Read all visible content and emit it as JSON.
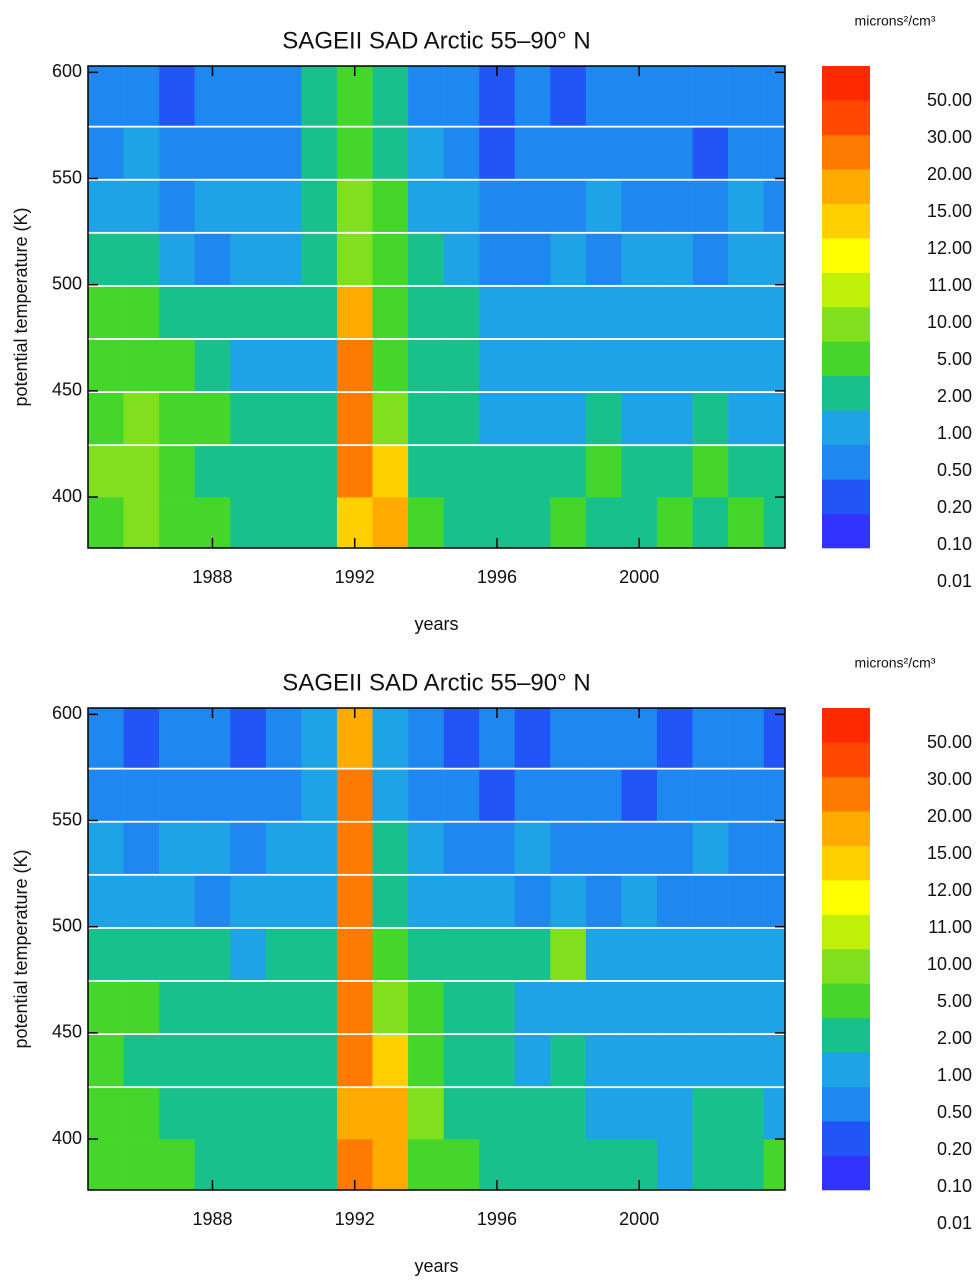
{
  "chart_data": [
    {
      "type": "heatmap",
      "title": "SAGEII SAD Arctic 55–90° N",
      "xlabel": "years",
      "ylabel": "potential temperature (K)",
      "colorbar_label": "microns²/cm³",
      "x": [
        1985,
        1986,
        1987,
        1988,
        1989,
        1990,
        1991,
        1992,
        1993,
        1994,
        1995,
        1996,
        1997,
        1998,
        1999,
        2000,
        2001,
        2002,
        2003,
        2004
      ],
      "y": [
        388,
        412,
        437,
        462,
        487,
        512,
        537,
        562,
        587
      ],
      "z": [
        [
          3,
          7,
          3,
          3,
          1.5,
          1.5,
          1.5,
          13,
          17,
          3,
          1.5,
          1.5,
          1.5,
          3,
          1.5,
          1.5,
          3,
          1.5,
          3,
          1.5
        ],
        [
          7,
          7,
          3,
          1.5,
          1.5,
          1.5,
          1.5,
          25,
          13,
          1.5,
          1.5,
          1.5,
          1.5,
          1.5,
          3,
          1.5,
          1.5,
          3,
          1.5,
          1.5
        ],
        [
          3,
          7,
          3,
          3,
          1.5,
          1.5,
          1.5,
          25,
          7,
          1.5,
          1.5,
          0.7,
          0.7,
          0.7,
          1.5,
          0.7,
          0.7,
          1.5,
          0.7,
          0.7
        ],
        [
          3,
          3,
          3,
          1.5,
          0.7,
          0.7,
          0.7,
          25,
          3,
          1.5,
          1.5,
          0.7,
          0.7,
          0.7,
          0.7,
          0.7,
          0.7,
          0.7,
          0.7,
          0.7
        ],
        [
          3,
          3,
          1.5,
          1.5,
          1.5,
          1.5,
          1.5,
          17,
          3,
          1.5,
          1.5,
          0.7,
          0.7,
          0.7,
          0.7,
          0.7,
          0.7,
          0.7,
          0.7,
          0.7
        ],
        [
          1.5,
          1.5,
          0.7,
          0.3,
          0.7,
          0.7,
          1.5,
          7,
          3,
          1.5,
          0.7,
          0.3,
          0.3,
          0.7,
          0.3,
          0.7,
          0.7,
          0.3,
          0.7,
          0.7
        ],
        [
          0.7,
          0.7,
          0.3,
          0.7,
          0.7,
          0.7,
          1.5,
          7,
          3,
          0.7,
          0.7,
          0.3,
          0.3,
          0.3,
          0.7,
          0.3,
          0.3,
          0.3,
          0.7,
          0.3
        ],
        [
          0.3,
          0.7,
          0.3,
          0.3,
          0.3,
          0.3,
          1.5,
          3,
          1.5,
          0.7,
          0.3,
          0.15,
          0.3,
          0.3,
          0.3,
          0.3,
          0.3,
          0.15,
          0.3,
          0.3
        ],
        [
          0.3,
          0.3,
          0.15,
          0.3,
          0.3,
          0.3,
          1.5,
          3,
          1.5,
          0.3,
          0.3,
          0.15,
          0.3,
          0.15,
          0.3,
          0.3,
          0.3,
          0.3,
          0.3,
          0.3
        ]
      ],
      "xlim": [
        1984.5,
        2004.1
      ],
      "ylim": [
        376,
        603
      ],
      "xticks": [
        1988,
        1992,
        1996,
        2000
      ],
      "yticks": [
        400,
        450,
        500,
        550,
        600
      ],
      "colorbar": {
        "levels": [
          {
            "value": 0.01,
            "label": "0.01"
          },
          {
            "value": 0.1,
            "label": "0.10"
          },
          {
            "value": 0.2,
            "label": "0.20"
          },
          {
            "value": 0.5,
            "label": "0.50"
          },
          {
            "value": 1,
            "label": "1.00"
          },
          {
            "value": 2,
            "label": "2.00"
          },
          {
            "value": 5,
            "label": "5.00"
          },
          {
            "value": 10,
            "label": "10.00"
          },
          {
            "value": 11,
            "label": "11.00"
          },
          {
            "value": 12,
            "label": "12.00"
          },
          {
            "value": 15,
            "label": "15.00"
          },
          {
            "value": 20,
            "label": "20.00"
          },
          {
            "value": 30,
            "label": "30.00"
          },
          {
            "value": 50,
            "label": "50.00"
          }
        ],
        "colors": [
          "#3333ff",
          "#2255f5",
          "#1f88f0",
          "#1ea3e6",
          "#18c08c",
          "#44d62a",
          "#80e01e",
          "#bff00a",
          "#ffff00",
          "#ffd000",
          "#ffaa00",
          "#ff7a00",
          "#ff4800",
          "#ff2a00"
        ]
      }
    },
    {
      "type": "heatmap",
      "title": "SAGEII SAD Arctic 55–90° N",
      "xlabel": "years",
      "ylabel": "potential temperature (K)",
      "colorbar_label": "microns²/cm³",
      "x": [
        1985,
        1986,
        1987,
        1988,
        1989,
        1990,
        1991,
        1992,
        1993,
        1994,
        1995,
        1996,
        1997,
        1998,
        1999,
        2000,
        2001,
        2002,
        2003,
        2004
      ],
      "y": [
        388,
        412,
        437,
        462,
        487,
        512,
        537,
        562,
        587
      ],
      "z": [
        [
          3,
          3,
          3,
          1.5,
          1.5,
          1.5,
          1.5,
          25,
          17,
          3,
          3,
          1.5,
          1.5,
          1.5,
          1.5,
          1.5,
          0.7,
          1.5,
          1.5,
          3
        ],
        [
          3,
          3,
          1.5,
          1.5,
          1.5,
          1.5,
          1.5,
          17,
          17,
          7,
          1.5,
          1.5,
          1.5,
          1.5,
          0.7,
          0.7,
          0.7,
          1.5,
          1.5,
          0.7
        ],
        [
          3,
          1.5,
          1.5,
          1.5,
          1.5,
          1.5,
          1.5,
          25,
          13,
          3,
          1.5,
          1.5,
          0.7,
          1.5,
          0.7,
          0.7,
          0.7,
          0.7,
          0.7,
          0.7
        ],
        [
          3,
          3,
          1.5,
          1.5,
          1.5,
          1.5,
          1.5,
          25,
          7,
          3,
          1.5,
          1.5,
          0.7,
          0.7,
          0.7,
          0.7,
          0.7,
          0.7,
          0.7,
          0.7
        ],
        [
          1.5,
          1.5,
          1.5,
          1.5,
          0.7,
          1.5,
          1.5,
          25,
          3,
          1.5,
          1.5,
          1.5,
          1.5,
          7,
          0.7,
          0.7,
          0.7,
          0.7,
          0.7,
          0.7
        ],
        [
          0.7,
          0.7,
          0.7,
          0.3,
          0.7,
          0.7,
          0.7,
          25,
          1.5,
          0.7,
          0.7,
          0.7,
          0.3,
          0.7,
          0.3,
          0.7,
          0.3,
          0.3,
          0.3,
          0.3
        ],
        [
          0.7,
          0.3,
          0.7,
          0.7,
          0.3,
          0.7,
          0.7,
          25,
          1.5,
          0.7,
          0.3,
          0.3,
          0.7,
          0.3,
          0.3,
          0.3,
          0.3,
          0.7,
          0.3,
          0.3
        ],
        [
          0.3,
          0.3,
          0.3,
          0.3,
          0.3,
          0.3,
          0.7,
          25,
          0.7,
          0.3,
          0.3,
          0.15,
          0.3,
          0.3,
          0.3,
          0.15,
          0.3,
          0.3,
          0.3,
          0.3
        ],
        [
          0.3,
          0.15,
          0.3,
          0.3,
          0.15,
          0.3,
          0.7,
          17,
          0.7,
          0.3,
          0.15,
          0.3,
          0.15,
          0.3,
          0.3,
          0.3,
          0.15,
          0.3,
          0.3,
          0.15
        ]
      ],
      "xlim": [
        1984.5,
        2004.1
      ],
      "ylim": [
        376,
        603
      ],
      "xticks": [
        1988,
        1992,
        1996,
        2000
      ],
      "yticks": [
        400,
        450,
        500,
        550,
        600
      ],
      "colorbar": {
        "levels": [
          {
            "value": 0.01,
            "label": "0.01"
          },
          {
            "value": 0.1,
            "label": "0.10"
          },
          {
            "value": 0.2,
            "label": "0.20"
          },
          {
            "value": 0.5,
            "label": "0.50"
          },
          {
            "value": 1,
            "label": "1.00"
          },
          {
            "value": 2,
            "label": "2.00"
          },
          {
            "value": 5,
            "label": "5.00"
          },
          {
            "value": 10,
            "label": "10.00"
          },
          {
            "value": 11,
            "label": "11.00"
          },
          {
            "value": 12,
            "label": "12.00"
          },
          {
            "value": 15,
            "label": "15.00"
          },
          {
            "value": 20,
            "label": "20.00"
          },
          {
            "value": 30,
            "label": "30.00"
          },
          {
            "value": 50,
            "label": "50.00"
          }
        ],
        "colors": [
          "#3333ff",
          "#2255f5",
          "#1f88f0",
          "#1ea3e6",
          "#18c08c",
          "#44d62a",
          "#80e01e",
          "#bff00a",
          "#ffff00",
          "#ffd000",
          "#ffaa00",
          "#ff7a00",
          "#ff4800",
          "#ff2a00"
        ]
      }
    }
  ]
}
